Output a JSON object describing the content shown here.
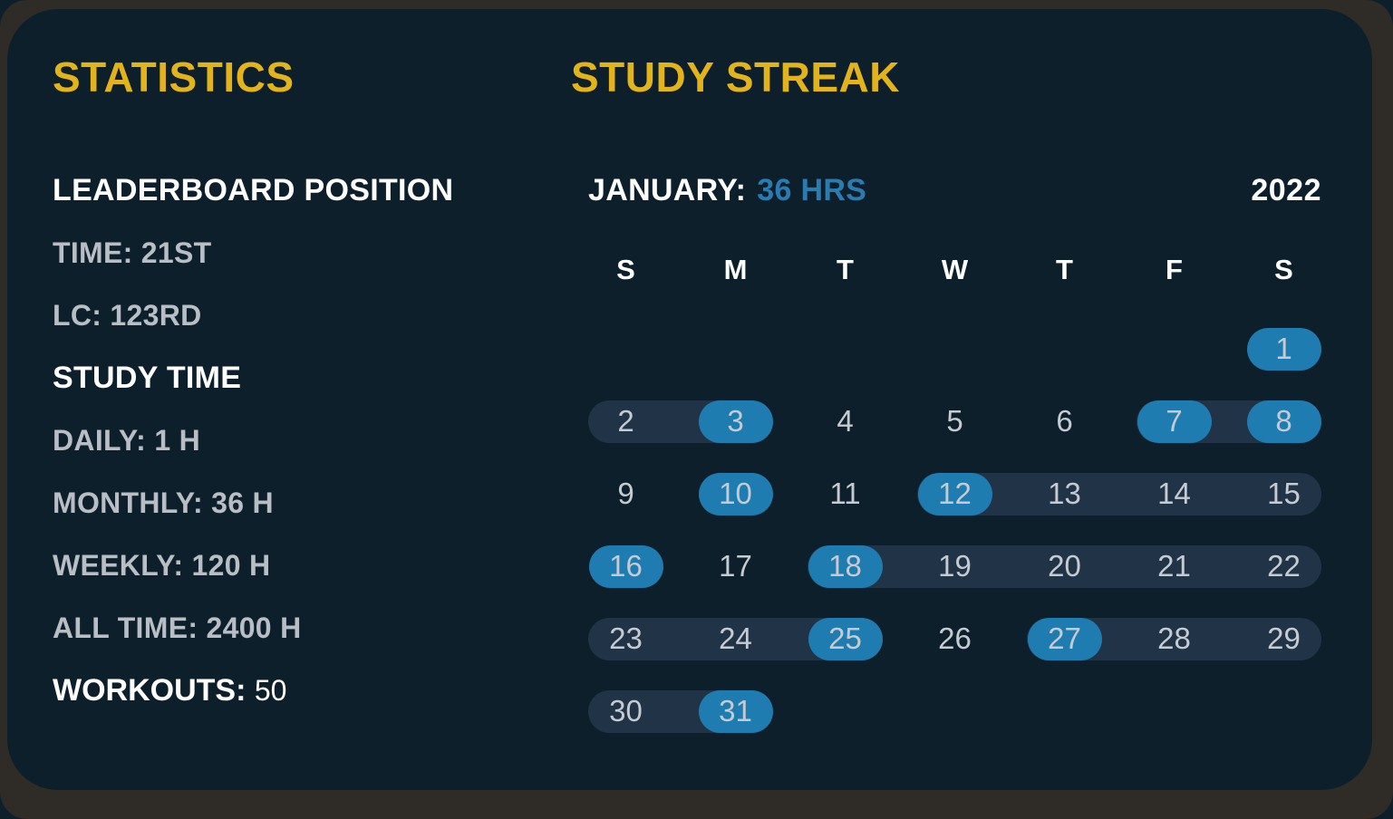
{
  "colors": {
    "frame": "#2f2b27",
    "card_background": "#0c1f2b",
    "accent_yellow": "#e2b31a",
    "accent_blue": "#2a7cb0",
    "pill_blue": "#1f7cb0",
    "streak_track": "#213447",
    "text_white": "#ffffff",
    "text_gray": "#b9bec6"
  },
  "statistics": {
    "title": "STATISTICS",
    "sections": [
      {
        "heading": "LEADERBOARD POSITION",
        "items": [
          {
            "label": "TIME:",
            "value": "21ST"
          },
          {
            "label": "LC:",
            "value": "123RD"
          }
        ]
      },
      {
        "heading": "STUDY TIME",
        "items": [
          {
            "label": "DAILY:",
            "value": "1 H"
          },
          {
            "label": "MONTHLY:",
            "value": "36 H"
          },
          {
            "label": "WEEKLY:",
            "value": "120 H"
          },
          {
            "label": "ALL TIME:",
            "value": "2400 H"
          }
        ]
      }
    ],
    "workouts": {
      "label": "WORKOUTS:",
      "value": "50"
    }
  },
  "streak": {
    "title": "STUDY STREAK",
    "month_label": "JANUARY:",
    "month_hours": "36 HRS",
    "year": "2022",
    "day_headers": [
      "S",
      "M",
      "T",
      "W",
      "T",
      "F",
      "S"
    ],
    "weeks": [
      [
        null,
        null,
        null,
        null,
        null,
        null,
        {
          "day": 1,
          "state": "highlight"
        }
      ],
      [
        {
          "day": 2,
          "state": "streak"
        },
        {
          "day": 3,
          "state": "highlight"
        },
        {
          "day": 4,
          "state": "plain"
        },
        {
          "day": 5,
          "state": "plain"
        },
        {
          "day": 6,
          "state": "plain"
        },
        {
          "day": 7,
          "state": "highlight"
        },
        {
          "day": 8,
          "state": "highlight"
        }
      ],
      [
        {
          "day": 9,
          "state": "plain"
        },
        {
          "day": 10,
          "state": "highlight"
        },
        {
          "day": 11,
          "state": "plain"
        },
        {
          "day": 12,
          "state": "highlight"
        },
        {
          "day": 13,
          "state": "streak"
        },
        {
          "day": 14,
          "state": "streak"
        },
        {
          "day": 15,
          "state": "streak"
        }
      ],
      [
        {
          "day": 16,
          "state": "highlight"
        },
        {
          "day": 17,
          "state": "plain"
        },
        {
          "day": 18,
          "state": "highlight"
        },
        {
          "day": 19,
          "state": "streak"
        },
        {
          "day": 20,
          "state": "streak"
        },
        {
          "day": 21,
          "state": "streak"
        },
        {
          "day": 22,
          "state": "streak"
        }
      ],
      [
        {
          "day": 23,
          "state": "streak"
        },
        {
          "day": 24,
          "state": "streak"
        },
        {
          "day": 25,
          "state": "highlight"
        },
        {
          "day": 26,
          "state": "plain"
        },
        {
          "day": 27,
          "state": "highlight"
        },
        {
          "day": 28,
          "state": "streak"
        },
        {
          "day": 29,
          "state": "streak"
        }
      ],
      [
        {
          "day": 30,
          "state": "streak"
        },
        {
          "day": 31,
          "state": "highlight"
        },
        null,
        null,
        null,
        null,
        null
      ]
    ]
  }
}
